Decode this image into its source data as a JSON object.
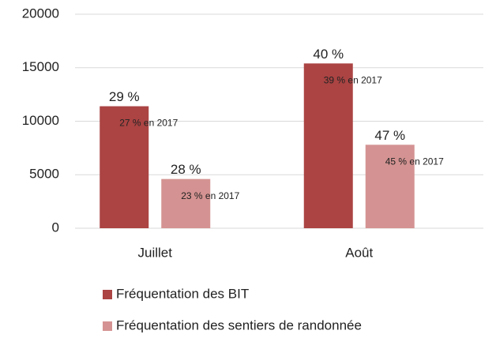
{
  "chart_data": {
    "type": "bar",
    "categories": [
      "Juillet",
      "Août"
    ],
    "series": [
      {
        "name": "Fréquentation des BIT",
        "color": "#ab4443",
        "values": [
          11400,
          15400
        ],
        "share_labels": [
          "29 %",
          "40 %"
        ],
        "share_2017_labels": [
          "27 % en 2017",
          "39 % en 2017"
        ]
      },
      {
        "name": "Fréquentation des sentiers de randonnée",
        "color": "#d49392",
        "values": [
          4600,
          7800
        ],
        "share_labels": [
          "28 %",
          "47 %"
        ],
        "share_2017_labels": [
          "23 % en 2017",
          "45 % en 2017"
        ]
      }
    ],
    "ylim": [
      0,
      20000
    ],
    "yticks": [
      0,
      5000,
      10000,
      15000,
      20000
    ],
    "grid": true,
    "legend": "bottom"
  }
}
